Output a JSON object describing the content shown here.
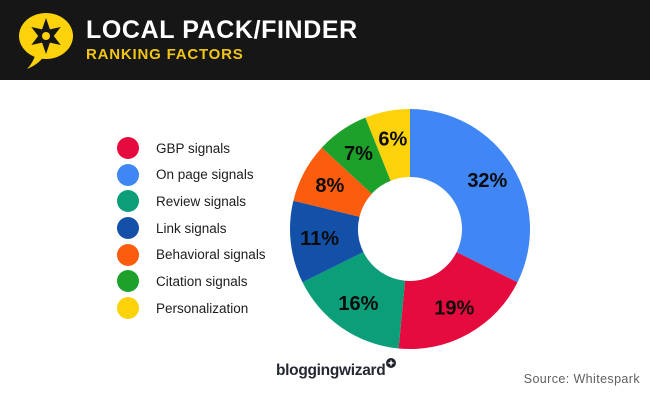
{
  "header": {
    "title": "LOCAL PACK/FINDER",
    "subtitle": "RANKING FACTORS"
  },
  "chart_data": {
    "type": "pie",
    "variant": "donut",
    "title": "Local Pack/Finder Ranking Factors",
    "unit": "%",
    "start_angle_deg": 0,
    "direction": "clockwise",
    "legend_position": "left",
    "slices": [
      {
        "label": "On page signals",
        "value": 32,
        "color": "#4086F4"
      },
      {
        "label": "GBP signals",
        "value": 19,
        "color": "#E60B3E"
      },
      {
        "label": "Review signals",
        "value": 16,
        "color": "#0C9E78"
      },
      {
        "label": "Link signals",
        "value": 11,
        "color": "#1350A8"
      },
      {
        "label": "Behavioral signals",
        "value": 8,
        "color": "#FB5C0D"
      },
      {
        "label": "Citation signals",
        "value": 7,
        "color": "#1DA12B"
      },
      {
        "label": "Personalization",
        "value": 6,
        "color": "#FCD20B"
      }
    ],
    "legend": [
      {
        "label": "GBP signals",
        "color": "#E60B3E"
      },
      {
        "label": "On page signals",
        "color": "#4086F4"
      },
      {
        "label": "Review signals",
        "color": "#0C9E78"
      },
      {
        "label": "Link signals",
        "color": "#1350A8"
      },
      {
        "label": "Behavioral signals",
        "color": "#FB5C0D"
      },
      {
        "label": "Citation signals",
        "color": "#1DA12B"
      },
      {
        "label": "Personalization",
        "color": "#FCD20B"
      }
    ]
  },
  "branding": {
    "logo_text": "bloggingwizard"
  },
  "source": {
    "text": "Source: Whitespark"
  },
  "colors": {
    "header_bg": "#161616",
    "accent_yellow": "#F5C917",
    "title_text": "#FFFFFF",
    "slice_label_text": "#0C0C0C"
  }
}
